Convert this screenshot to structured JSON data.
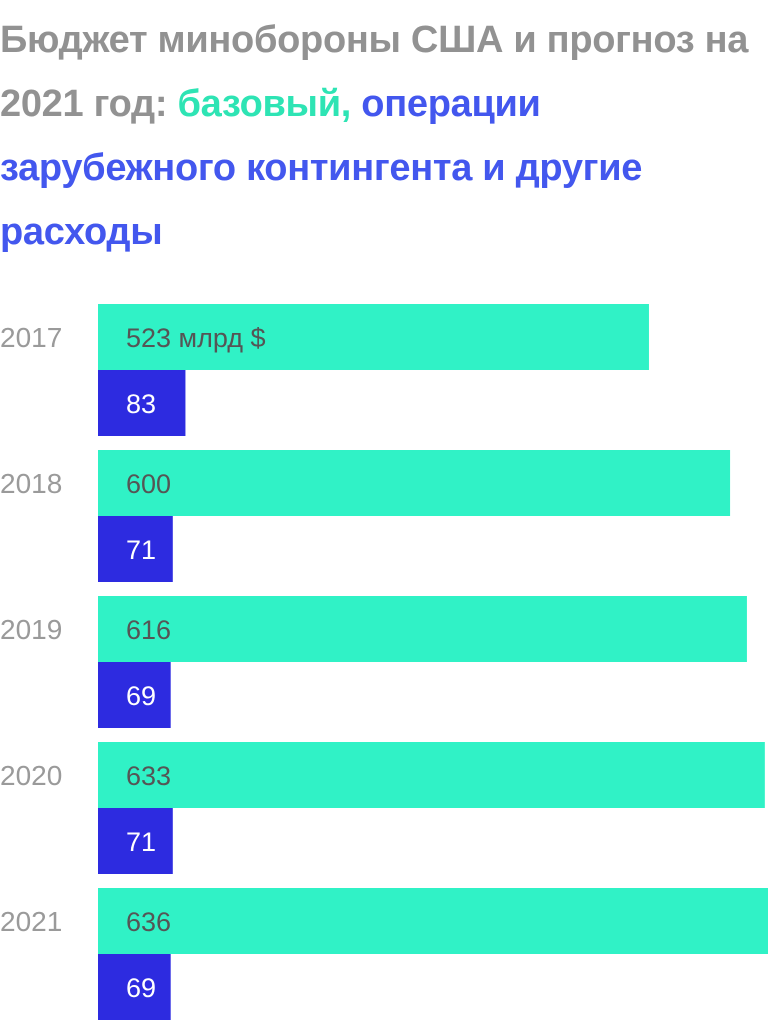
{
  "title": {
    "part1": "Бюджет минобороны США и прогноз на 2021 год: ",
    "part2": "базовый,",
    "part3": "операции зарубежного контингента и другие расходы"
  },
  "colors": {
    "title_gray": "#929292",
    "base": "#30f2c6",
    "oco": "#2d2be0",
    "year_label": "#9a9a9a",
    "base_value_text": "#555555",
    "oco_value_text": "#ffffff"
  },
  "chart_data": {
    "type": "bar",
    "orientation": "horizontal",
    "categories": [
      "2017",
      "2018",
      "2019",
      "2020",
      "2021"
    ],
    "series": [
      {
        "values": [
          523,
          600,
          616,
          633,
          636
        ]
      },
      {
        "values": [
          83,
          71,
          69,
          71,
          69
        ]
      }
    ],
    "first_value_label": "523 млрд $",
    "xlim": [
      0,
      636
    ]
  }
}
